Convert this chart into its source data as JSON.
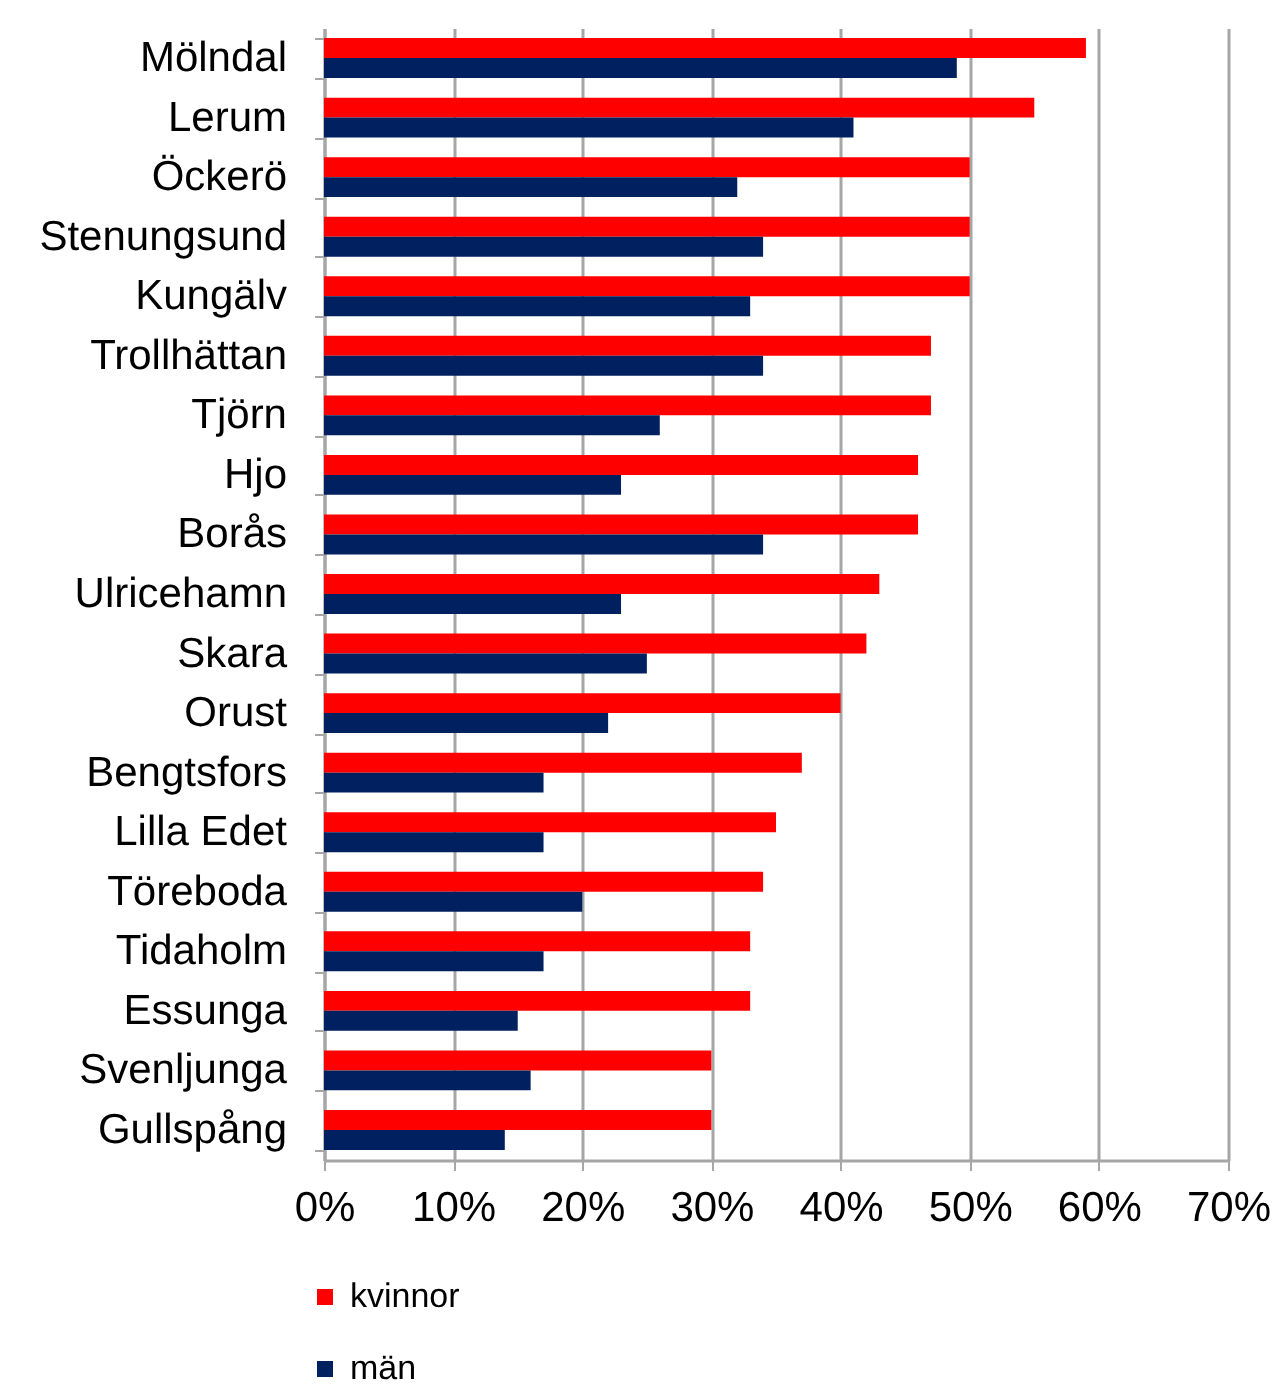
{
  "chart_data": {
    "type": "bar",
    "orientation": "horizontal",
    "categories": [
      "Mölndal",
      "Lerum",
      "Öckerö",
      "Stenungsund",
      "Kungälv",
      "Trollhättan",
      "Tjörn",
      "Hjo",
      "Borås",
      "Ulricehamn",
      "Skara",
      "Orust",
      "Bengtsfors",
      "Lilla Edet",
      "Töreboda",
      "Tidaholm",
      "Essunga",
      "Svenljunga",
      "Gullspång"
    ],
    "series": [
      {
        "name": "kvinnor",
        "color": "#ff0000",
        "values": [
          59,
          55,
          50,
          50,
          50,
          47,
          47,
          46,
          46,
          43,
          42,
          40,
          37,
          35,
          34,
          33,
          33,
          30,
          30
        ]
      },
      {
        "name": "män",
        "color": "#002060",
        "values": [
          49,
          41,
          32,
          34,
          33,
          34,
          26,
          23,
          34,
          23,
          25,
          22,
          17,
          17,
          20,
          17,
          15,
          16,
          14
        ]
      }
    ],
    "xlim": [
      0,
      70
    ],
    "xticks": [
      {
        "value": 0,
        "label": "0%"
      },
      {
        "value": 10,
        "label": "10%"
      },
      {
        "value": 20,
        "label": "20%"
      },
      {
        "value": 30,
        "label": "30%"
      },
      {
        "value": 40,
        "label": "40%"
      },
      {
        "value": 50,
        "label": "50%"
      },
      {
        "value": 60,
        "label": "60%"
      },
      {
        "value": 70,
        "label": "70%"
      }
    ],
    "grid": "x",
    "legend": "bottom"
  }
}
